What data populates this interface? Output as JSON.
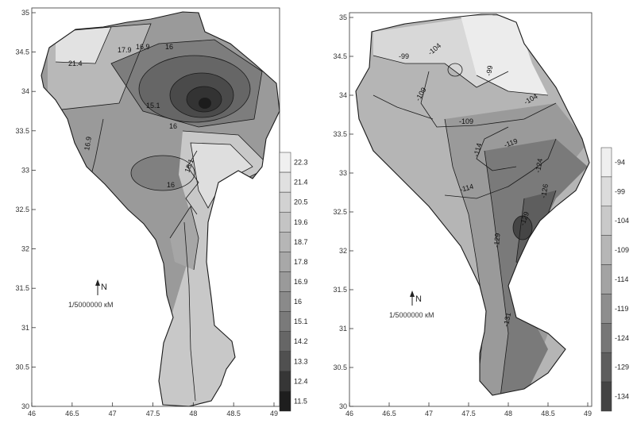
{
  "colors": {
    "ink": "#222222",
    "background": "#ffffff"
  },
  "maps": [
    {
      "name": "left-map",
      "x_ticks": [
        "46",
        "46.5",
        "47",
        "47.5",
        "48",
        "48.5",
        "49"
      ],
      "y_ticks": [
        "35",
        "34.5",
        "34",
        "33.5",
        "33",
        "32.5",
        "32",
        "31.5",
        "31",
        "30.5",
        "30"
      ],
      "contour_labels": [
        "21.4",
        "17.9",
        "16.9",
        "16",
        "15.1",
        "16",
        "16.9",
        "18.1",
        "16"
      ],
      "legend": {
        "values": [
          "22.3",
          "21.4",
          "20.5",
          "19.6",
          "18.7",
          "17.8",
          "16.9",
          "16",
          "15.1",
          "14.2",
          "13.3",
          "12.4",
          "11.5"
        ],
        "colors": [
          "#f0f0f0",
          "#e0e0e0",
          "#d2d2d2",
          "#c4c4c4",
          "#b6b6b6",
          "#a8a8a8",
          "#9a9a9a",
          "#8a8a8a",
          "#7a7a7a",
          "#666666",
          "#505050",
          "#363636",
          "#1e1e1e"
        ]
      },
      "north_label": "N",
      "scale_text": "1/5000000 кМ"
    },
    {
      "name": "right-map",
      "x_ticks": [
        "46",
        "46.5",
        "47",
        "47.5",
        "48",
        "48.5",
        "49"
      ],
      "y_ticks": [
        "35",
        "34.5",
        "34",
        "33.5",
        "33",
        "32.5",
        "32",
        "31.5",
        "31",
        "30.5",
        "30"
      ],
      "contour_labels": [
        "-99",
        "-104",
        "-99",
        "-109",
        "-104",
        "-109",
        "-114",
        "-119",
        "-124",
        "-126",
        "-129",
        "-114",
        "-129",
        "-131"
      ],
      "legend": {
        "values": [
          "-94",
          "-99",
          "-104",
          "-109",
          "-114",
          "-119",
          "-124",
          "-129",
          "-134"
        ],
        "colors": [
          "#efefef",
          "#dcdcdc",
          "#c9c9c9",
          "#b6b6b6",
          "#a3a3a3",
          "#8e8e8e",
          "#777777",
          "#5e5e5e",
          "#444444"
        ]
      },
      "north_label": "N",
      "scale_text": "1/5000000 кМ"
    }
  ]
}
